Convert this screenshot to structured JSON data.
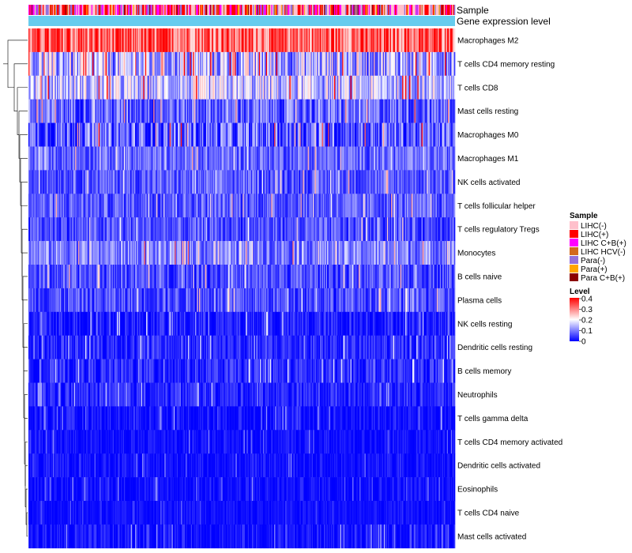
{
  "chart_data": {
    "type": "heatmap",
    "title": "",
    "annotation_rows": [
      "Sample",
      "Gene expression level"
    ],
    "rows": [
      {
        "label": "Macrophages M2",
        "mean": 0.32,
        "spread": 0.1
      },
      {
        "label": "T cells CD4 memory resting",
        "mean": 0.14,
        "spread": 0.12
      },
      {
        "label": "T cells CD8",
        "mean": 0.15,
        "spread": 0.1
      },
      {
        "label": "Mast cells resting",
        "mean": 0.08,
        "spread": 0.08
      },
      {
        "label": "Macrophages M0",
        "mean": 0.07,
        "spread": 0.1
      },
      {
        "label": "Macrophages M1",
        "mean": 0.08,
        "spread": 0.06
      },
      {
        "label": "NK cells activated",
        "mean": 0.07,
        "spread": 0.06
      },
      {
        "label": "T cells follicular helper",
        "mean": 0.07,
        "spread": 0.06
      },
      {
        "label": "T cells regulatory  Tregs",
        "mean": 0.06,
        "spread": 0.06
      },
      {
        "label": "Monocytes",
        "mean": 0.1,
        "spread": 0.07
      },
      {
        "label": "B cells naive",
        "mean": 0.06,
        "spread": 0.06
      },
      {
        "label": "Plasma cells",
        "mean": 0.06,
        "spread": 0.06
      },
      {
        "label": "NK cells resting",
        "mean": 0.02,
        "spread": 0.05
      },
      {
        "label": "Dendritic cells resting",
        "mean": 0.03,
        "spread": 0.05
      },
      {
        "label": "B cells memory",
        "mean": 0.03,
        "spread": 0.05
      },
      {
        "label": "Neutrophils",
        "mean": 0.03,
        "spread": 0.04
      },
      {
        "label": "T cells gamma delta",
        "mean": 0.01,
        "spread": 0.04
      },
      {
        "label": "T cells CD4 memory activated",
        "mean": 0.01,
        "spread": 0.03
      },
      {
        "label": "Dendritic cells activated",
        "mean": 0.01,
        "spread": 0.03
      },
      {
        "label": "Eosinophils",
        "mean": 0.01,
        "spread": 0.03
      },
      {
        "label": "T cells CD4 naive",
        "mean": 0.01,
        "spread": 0.02
      },
      {
        "label": "Mast cells activated",
        "mean": 0.01,
        "spread": 0.04
      }
    ],
    "n_columns": 420,
    "legend": {
      "position": "right",
      "sample": {
        "title": "Sample",
        "entries": [
          {
            "label": "LIHC(-)",
            "color": "#ffc0cb"
          },
          {
            "label": "LIHC(+)",
            "color": "#ff0000"
          },
          {
            "label": "LIHC C+B(+)",
            "color": "#ff00ff"
          },
          {
            "label": "LIHC HCV(-)",
            "color": "#d2691e"
          },
          {
            "label": "Para(-)",
            "color": "#9370db"
          },
          {
            "label": "Para(+)",
            "color": "#ffa500"
          },
          {
            "label": "Para C+B(+)",
            "color": "#8b0000"
          }
        ]
      },
      "level": {
        "title": "Level",
        "min": 0,
        "max": 0.4,
        "ticks": [
          "0.4",
          "0.3",
          "0.2",
          "0.1",
          "0"
        ],
        "colors": [
          "#0000ff",
          "#ffffff",
          "#ff0000"
        ]
      }
    },
    "expression_bar_color": "#66ccee"
  }
}
